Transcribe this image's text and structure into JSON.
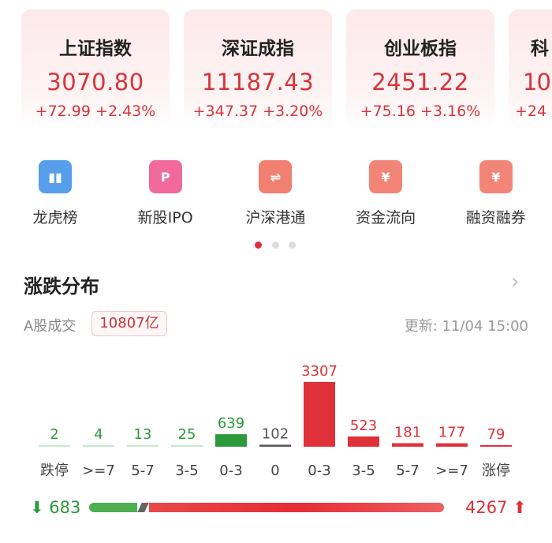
{
  "indices": [
    {
      "name": "上证指数",
      "value": "3070.80",
      "change": "+72.99 +2.43%"
    },
    {
      "name": "深证成指",
      "value": "11187.43",
      "change": "+347.37 +3.20%"
    },
    {
      "name": "创业板指",
      "value": "2451.22",
      "change": "+75.16 +3.16%"
    },
    {
      "name": "科",
      "value": "10",
      "change": "+24"
    }
  ],
  "shortcuts": [
    {
      "label": "龙虎榜",
      "icon": "chart-doc-icon",
      "color": "#3a8ee8"
    },
    {
      "label": "新股IPO",
      "icon": "ipo-p-icon",
      "color": "#f0508a"
    },
    {
      "label": "沪深港通",
      "icon": "exchange-folder-icon",
      "color": "#f06a5a"
    },
    {
      "label": "资金流向",
      "icon": "yuan-coin-icon",
      "color": "#f07060"
    },
    {
      "label": "融资融券",
      "icon": "yuan-ticket-icon",
      "color": "#f07060"
    }
  ],
  "pager": {
    "count": 3,
    "active": 0
  },
  "section": {
    "title": "涨跌分布",
    "volume_label": "A股成交",
    "volume_value": "10807亿",
    "update": "更新: 11/04 15:00"
  },
  "chart_data": {
    "type": "bar",
    "categories": [
      "跌停",
      ">=7",
      "5-7",
      "3-5",
      "0-3",
      "0",
      "0-3",
      "3-5",
      "5-7",
      ">=7",
      "涨停"
    ],
    "values": [
      2,
      4,
      13,
      25,
      639,
      102,
      3307,
      523,
      181,
      177,
      79
    ],
    "colors": [
      "#2d9a3a",
      "#2d9a3a",
      "#2d9a3a",
      "#2d9a3a",
      "#2d9a3a",
      "#555555",
      "#e0303a",
      "#e0303a",
      "#e0303a",
      "#e0303a",
      "#e0303a"
    ]
  },
  "summary": {
    "down": "683",
    "up": "4267",
    "flat": "102",
    "down_color": "#2d9a3a",
    "up_color": "#d9323a"
  }
}
